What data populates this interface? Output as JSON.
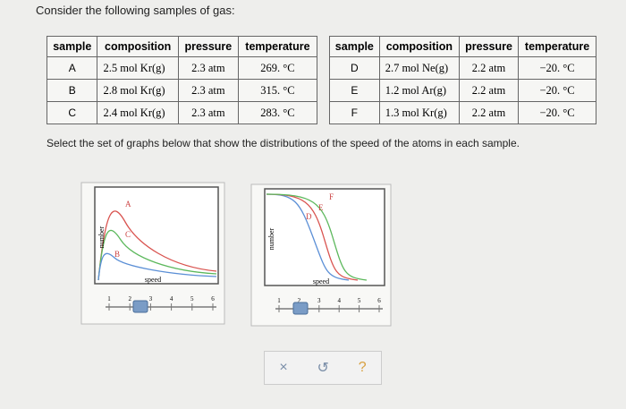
{
  "prompt": "Consider the following samples of gas:",
  "tables": [
    {
      "headers": [
        "sample",
        "composition",
        "pressure",
        "temperature"
      ],
      "rows": [
        [
          "A",
          "2.5 mol Kr(g)",
          "2.3 atm",
          "269. °C"
        ],
        [
          "B",
          "2.8 mol Kr(g)",
          "2.3 atm",
          "315. °C"
        ],
        [
          "C",
          "2.4 mol Kr(g)",
          "2.3 atm",
          "283. °C"
        ]
      ]
    },
    {
      "headers": [
        "sample",
        "composition",
        "pressure",
        "temperature"
      ],
      "rows": [
        [
          "D",
          "2.7 mol Ne(g)",
          "2.2 atm",
          "−20. °C"
        ],
        [
          "E",
          "1.2 mol Ar(g)",
          "2.2 atm",
          "−20. °C"
        ],
        [
          "F",
          "1.3 mol Kr(g)",
          "2.2 atm",
          "−20. °C"
        ]
      ]
    }
  ],
  "instruction": "Select the set of graphs below that show the distributions of the speed of the atoms in each sample.",
  "graphs": [
    {
      "y_label": "number",
      "x_label": "speed",
      "curve_labels": [
        "A",
        "C",
        "B"
      ],
      "slider_ticks": [
        "1",
        "2",
        "3",
        "4",
        "5",
        "6"
      ]
    },
    {
      "y_label": "number",
      "x_label": "speed",
      "curve_labels": [
        "D",
        "E",
        "F"
      ],
      "slider_ticks": [
        "1",
        "2",
        "3",
        "4",
        "5",
        "6"
      ]
    }
  ],
  "buttons": [
    "×",
    "↺",
    "?"
  ]
}
